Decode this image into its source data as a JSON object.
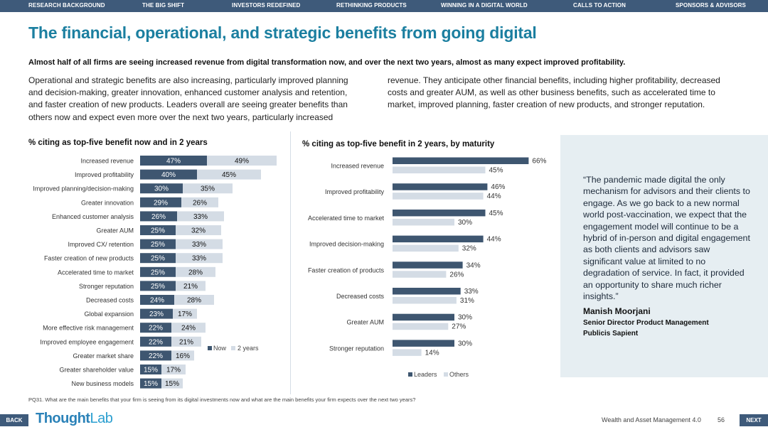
{
  "nav": {
    "items": [
      "RESEARCH BACKGROUND",
      "THE BIG SHIFT",
      "INVESTORS REDEFINED",
      "RETHINKING PRODUCTS",
      "WINNING IN A DIGITAL WORLD",
      "CALLS TO ACTION",
      "SPONSORS & ADVISORS"
    ]
  },
  "title": "The financial, operational, and strategic benefits from going digital",
  "subtitle": "Almost half of all firms are seeing increased revenue from digital transformation now, and over the next two years, almost as many expect improved profitability.",
  "intro_left": "Operational and strategic benefits are also increasing, particularly improved planning and decision-making, greater innovation, enhanced customer analysis and retention, and faster creation of new products. Leaders overall are seeing greater benefits than others now and expect even more over the next two years, particularly increased",
  "intro_right": "revenue. They anticipate other financial benefits, including higher profitability, decreased costs and greater AUM, as well as other business benefits, such as accelerated time to market, improved planning, faster creation of new products, and stronger reputation.",
  "chart_data": [
    {
      "type": "bar",
      "orientation": "horizontal",
      "stacked": true,
      "title": "% citing as top-five benefit now and in 2 years",
      "categories": [
        "Increased revenue",
        "Improved profitability",
        "Improved planning/decision-making",
        "Greater innovation",
        "Enhanced customer analysis",
        "Greater AUM",
        "Improved CX/ retention",
        "Faster creation of new products",
        "Accelerated time to market",
        "Stronger reputation",
        "Decreased costs",
        "Global expansion",
        "More effective risk management",
        "Improved employee engagement",
        "Greater market share",
        "Greater shareholder value",
        "New business models"
      ],
      "series": [
        {
          "name": "Now",
          "color": "#3e5670",
          "values": [
            47,
            40,
            30,
            29,
            26,
            25,
            25,
            25,
            25,
            25,
            24,
            23,
            22,
            22,
            22,
            15,
            15
          ]
        },
        {
          "name": "2 years",
          "color": "#d4dce5",
          "values": [
            49,
            45,
            35,
            26,
            33,
            32,
            33,
            33,
            28,
            21,
            28,
            17,
            24,
            21,
            16,
            17,
            15
          ]
        }
      ],
      "legend": "bottom-right"
    },
    {
      "type": "bar",
      "orientation": "horizontal",
      "title": "% citing as top-five benefit in 2 years, by maturity",
      "categories": [
        "Increased revenue",
        "Improved profitability",
        "Accelerated time to market",
        "Improved decision-making",
        "Faster creation of products",
        "Decreased costs",
        "Greater AUM",
        "Stronger reputation"
      ],
      "series": [
        {
          "name": "Leaders",
          "color": "#3e5670",
          "values": [
            66,
            46,
            45,
            44,
            34,
            33,
            30,
            30
          ]
        },
        {
          "name": "Others",
          "color": "#d4dce5",
          "values": [
            45,
            44,
            30,
            32,
            26,
            31,
            27,
            14
          ]
        }
      ],
      "legend": "bottom-left"
    }
  ],
  "quote": {
    "text": "“The pandemic made digital the only mechanism for advisors and their clients to engage. As we go back to a new normal world post-vaccination, we expect that the engagement model will continue to be a hybrid of in-person and digital engagement as both clients and advisors saw significant value at limited to no degradation of service. In fact, it provided an opportunity to share much richer insights.”",
    "name": "Manish Moorjani",
    "role": "Senior Director Product Management",
    "company": "Publicis Sapient"
  },
  "footnote": "PQ31. What are the main benefits that your firm is seeing from its digital investments now and what are the main benefits your firm expects over the next two years?",
  "footer": {
    "back": "BACK",
    "next": "NEXT",
    "logo_thought": "Thought",
    "logo_lab": "Lab",
    "report": "Wealth and Asset Management 4.0",
    "page": "56"
  }
}
